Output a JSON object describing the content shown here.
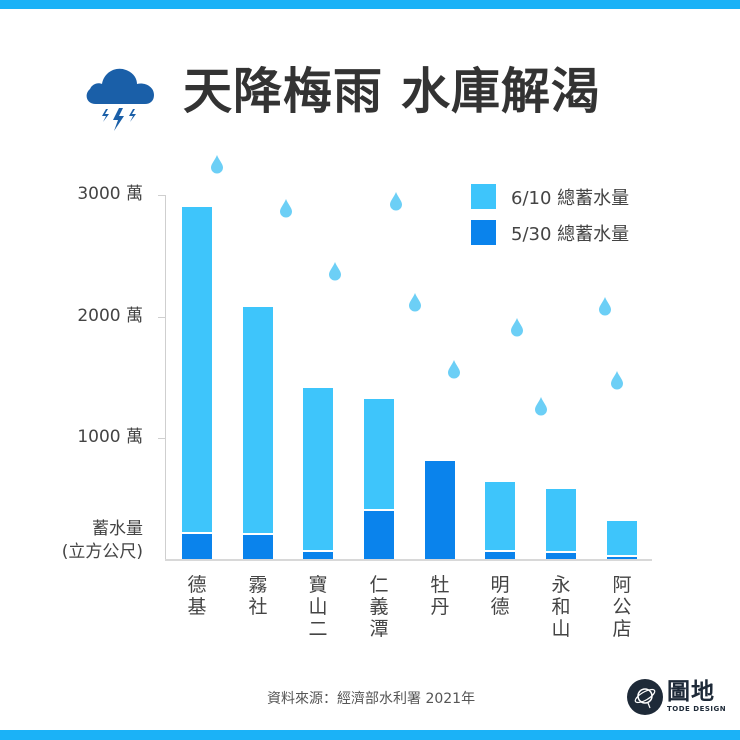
{
  "header": {
    "title": "天降梅雨 水庫解渴",
    "icon": "thunderstorm-cloud-icon",
    "accent_color": "#1bb2f7",
    "icon_color": "#1a5fa8"
  },
  "legend": [
    {
      "label": "6/10 總蓄水量",
      "color": "#3ec5fb"
    },
    {
      "label": "5/30 總蓄水量",
      "color": "#0a83ec"
    }
  ],
  "y_axis": {
    "ticks": [
      "3000 萬",
      "2000 萬",
      "1000 萬"
    ],
    "unit_line1": "蓄水量",
    "unit_line2": "(立方公尺)"
  },
  "x_axis": {
    "labels": [
      [
        "德",
        "基"
      ],
      [
        "霧",
        "社"
      ],
      [
        "寶",
        "山",
        "二"
      ],
      [
        "仁",
        "義",
        "潭"
      ],
      [
        "牡",
        "丹"
      ],
      [
        "明",
        "德"
      ],
      [
        "永",
        "和",
        "山"
      ],
      [
        "阿",
        "公",
        "店"
      ]
    ]
  },
  "chart_data": {
    "type": "bar",
    "title": "天降梅雨 水庫解渴",
    "xlabel": "",
    "ylabel": "蓄水量(立方公尺)",
    "y_unit": "萬",
    "ylim": [
      0,
      3000
    ],
    "yticks": [
      1000,
      2000,
      3000
    ],
    "grid": false,
    "legend_position": "top-right",
    "categories": [
      "德基",
      "霧社",
      "寶山二",
      "仁義潭",
      "牡丹",
      "明德",
      "永和山",
      "阿公店"
    ],
    "series": [
      {
        "name": "6/10 總蓄水量",
        "color": "#3ec5fb",
        "values": [
          2900,
          2080,
          1410,
          1320,
          810,
          635,
          580,
          315
        ]
      },
      {
        "name": "5/30 總蓄水量",
        "color": "#0a83ec",
        "values": [
          220,
          215,
          75,
          410,
          810,
          75,
          65,
          35
        ]
      }
    ]
  },
  "footer": {
    "source": "資料來源：經濟部水利署 2021年",
    "logo_cn": "圖地",
    "logo_en": "TODE DESIGN"
  }
}
